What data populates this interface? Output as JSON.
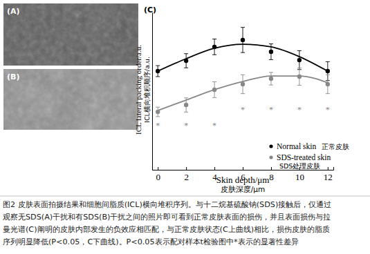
{
  "panels": [
    {
      "label": "(A)"
    },
    {
      "label": "(B)"
    }
  ],
  "caption": [
    "图2 皮肤表面拍摄结果和细胞间脂质(ICL)横向堆积序列。与十二烷基硫酸钠(SDS)接触后，仅通过",
    "观察无SDS(A)干扰和有SDS(B)干扰之间的照片即可看到正常皮肤表面的损伤，并且表面损伤与拉",
    "曼光谱(C)阐明的皮肤内部发生的负效应相匹配，与正常皮肤状态(C上曲线)相比，损伤皮肤的脂质",
    "序列明显降低(P<0.05，C下曲线)。P<0.05表示配对样本t检验图中*表示的显著性差异"
  ],
  "chart_data": {
    "type": "line",
    "panel_label": "(C)",
    "x_label": "Skin depth/μm",
    "x_label_cn": "皮肤深度/μm",
    "y_label": "ICL lateral packing order/a.u.",
    "y_label_cn": "ICL横向堆积顺序/a.u.",
    "xlim": [
      -0.4,
      12.4
    ],
    "xticks": [
      0,
      2,
      4,
      6,
      8,
      10,
      12
    ],
    "ylim": [
      0,
      10
    ],
    "yticks": [],
    "tick_labels": "x",
    "legend": "lower right",
    "series": [
      {
        "name": "Normal skin",
        "name_cn": "正常皮肤",
        "color": "#000000",
        "marker": "circle",
        "x": [
          0,
          2,
          4,
          6,
          8,
          10,
          12
        ],
        "values": [
          6.27,
          6.93,
          7.81,
          8.25,
          7.5,
          6.97,
          6.27
        ],
        "errors": [
          0.35,
          0.45,
          0.5,
          0.8,
          0.5,
          0.6,
          0.6
        ],
        "fit_values": [
          6.27,
          7.06,
          7.72,
          7.98,
          7.81,
          7.19,
          6.27
        ]
      },
      {
        "name": "SDS-treated skin",
        "name_cn": "SDS处理皮肤",
        "color": "#888888",
        "marker": "circle",
        "x": [
          0,
          2,
          4,
          6,
          8,
          10,
          12
        ],
        "values": [
          3.68,
          4.12,
          5.09,
          5.44,
          5.79,
          5.92,
          5.44
        ],
        "errors": [
          0.3,
          0.45,
          0.5,
          0.6,
          0.4,
          0.55,
          0.6
        ],
        "fit_values": [
          3.77,
          4.43,
          5.09,
          5.61,
          5.96,
          5.96,
          5.53
        ]
      }
    ],
    "significance": {
      "text": "*",
      "x": [
        0,
        2,
        4,
        6,
        8,
        10,
        12
      ],
      "values": [
        2.76,
        2.76,
        2.76,
        3.77,
        3.77,
        3.77,
        3.77
      ]
    }
  }
}
